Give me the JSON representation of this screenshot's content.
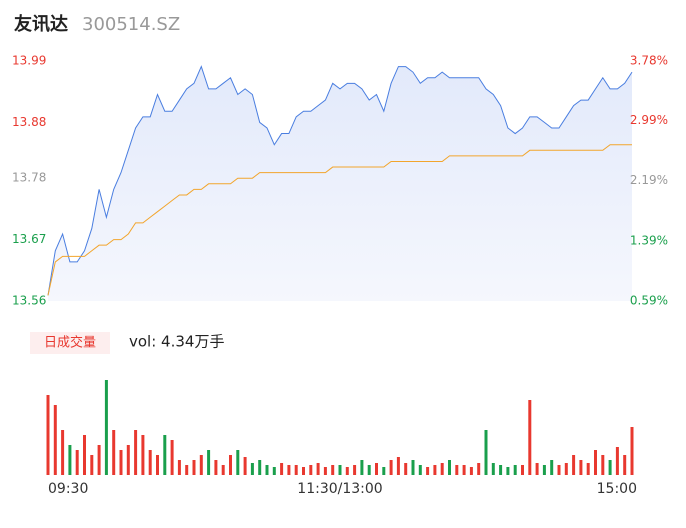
{
  "header": {
    "name": "友讯达",
    "code": "300514.SZ"
  },
  "chart_data": [
    {
      "type": "line",
      "x": [
        0,
        3,
        6,
        9,
        12,
        15,
        18,
        21,
        24,
        27,
        30,
        33,
        36,
        39,
        42,
        45,
        48,
        51,
        54,
        57,
        60,
        63,
        66,
        69,
        72,
        75,
        78,
        81,
        84,
        87,
        90,
        93,
        96,
        99,
        102,
        105,
        108,
        111,
        114,
        117,
        120,
        123,
        126,
        129,
        132,
        135,
        138,
        141,
        144,
        147,
        150,
        153,
        156,
        159,
        162,
        165,
        168,
        171,
        174,
        177,
        180,
        183,
        186,
        189,
        192,
        195,
        198,
        201,
        204,
        207,
        210,
        213,
        216,
        219,
        222,
        225,
        228,
        231,
        234,
        237,
        240
      ],
      "series": [
        {
          "color": "#4a7ee0",
          "values": [
            13.57,
            13.65,
            13.68,
            13.63,
            13.63,
            13.65,
            13.69,
            13.76,
            13.71,
            13.76,
            13.79,
            13.83,
            13.87,
            13.89,
            13.89,
            13.93,
            13.9,
            13.9,
            13.92,
            13.94,
            13.95,
            13.98,
            13.94,
            13.94,
            13.95,
            13.96,
            13.93,
            13.94,
            13.93,
            13.88,
            13.87,
            13.84,
            13.86,
            13.86,
            13.89,
            13.9,
            13.9,
            13.91,
            13.92,
            13.95,
            13.94,
            13.95,
            13.95,
            13.94,
            13.92,
            13.93,
            13.9,
            13.95,
            13.98,
            13.98,
            13.97,
            13.95,
            13.96,
            13.96,
            13.97,
            13.96,
            13.96,
            13.96,
            13.96,
            13.96,
            13.94,
            13.93,
            13.91,
            13.87,
            13.86,
            13.87,
            13.89,
            13.89,
            13.88,
            13.87,
            13.87,
            13.89,
            13.91,
            13.92,
            13.92,
            13.94,
            13.96,
            13.94,
            13.94,
            13.95,
            13.97
          ]
        },
        {
          "color": "#f2a52c",
          "values": [
            13.57,
            13.63,
            13.64,
            13.64,
            13.64,
            13.64,
            13.65,
            13.66,
            13.66,
            13.67,
            13.67,
            13.68,
            13.7,
            13.7,
            13.71,
            13.72,
            13.73,
            13.74,
            13.75,
            13.75,
            13.76,
            13.76,
            13.77,
            13.77,
            13.77,
            13.77,
            13.78,
            13.78,
            13.78,
            13.79,
            13.79,
            13.79,
            13.79,
            13.79,
            13.79,
            13.79,
            13.79,
            13.79,
            13.79,
            13.8,
            13.8,
            13.8,
            13.8,
            13.8,
            13.8,
            13.8,
            13.8,
            13.81,
            13.81,
            13.81,
            13.81,
            13.81,
            13.81,
            13.81,
            13.81,
            13.82,
            13.82,
            13.82,
            13.82,
            13.82,
            13.82,
            13.82,
            13.82,
            13.82,
            13.82,
            13.82,
            13.83,
            13.83,
            13.83,
            13.83,
            13.83,
            13.83,
            13.83,
            13.83,
            13.83,
            13.83,
            13.83,
            13.84,
            13.84,
            13.84,
            13.84
          ]
        }
      ],
      "area_color": "#eef2fc",
      "xlim": [
        0,
        240
      ],
      "xticks": [
        {
          "value": 0,
          "label": "09:30"
        },
        {
          "value": 120,
          "label": "11:30/13:00"
        },
        {
          "value": 240,
          "label": "15:00"
        }
      ],
      "ylim": [
        13.56,
        13.99
      ],
      "yticks": [
        13.99,
        13.88,
        13.78,
        13.67,
        13.56
      ],
      "ytick_colors": [
        "#e8382f",
        "#e8382f",
        "#999999",
        "#1a9f4c",
        "#1a9f4c"
      ],
      "y2lim": [
        0.59,
        3.78
      ],
      "y2ticks": [
        {
          "value": 3.78,
          "label": "3.78%"
        },
        {
          "value": 2.99,
          "label": "2.99%"
        },
        {
          "value": 2.19,
          "label": "2.19%"
        },
        {
          "value": 1.39,
          "label": "1.39%"
        },
        {
          "value": 0.59,
          "label": "0.59%"
        }
      ],
      "grid": false
    },
    {
      "type": "bar",
      "legend_label": "日成交量",
      "annotation": "vol: 4.34万手",
      "up_color": "#e8382f",
      "down_color": "#1a9f4c",
      "values": [
        1600,
        1400,
        900,
        600,
        500,
        800,
        400,
        600,
        1900,
        900,
        500,
        600,
        900,
        800,
        500,
        400,
        800,
        700,
        300,
        200,
        300,
        400,
        500,
        300,
        200,
        400,
        500,
        360,
        240,
        300,
        200,
        160,
        240,
        200,
        200,
        160,
        200,
        240,
        160,
        200,
        200,
        160,
        200,
        300,
        200,
        240,
        160,
        300,
        360,
        240,
        300,
        200,
        160,
        200,
        240,
        300,
        200,
        200,
        160,
        240,
        900,
        240,
        200,
        160,
        200,
        200,
        1500,
        240,
        200,
        300,
        200,
        240,
        400,
        300,
        240,
        500,
        400,
        300,
        560,
        400,
        960
      ],
      "ylim": [
        0,
        2000
      ]
    }
  ]
}
